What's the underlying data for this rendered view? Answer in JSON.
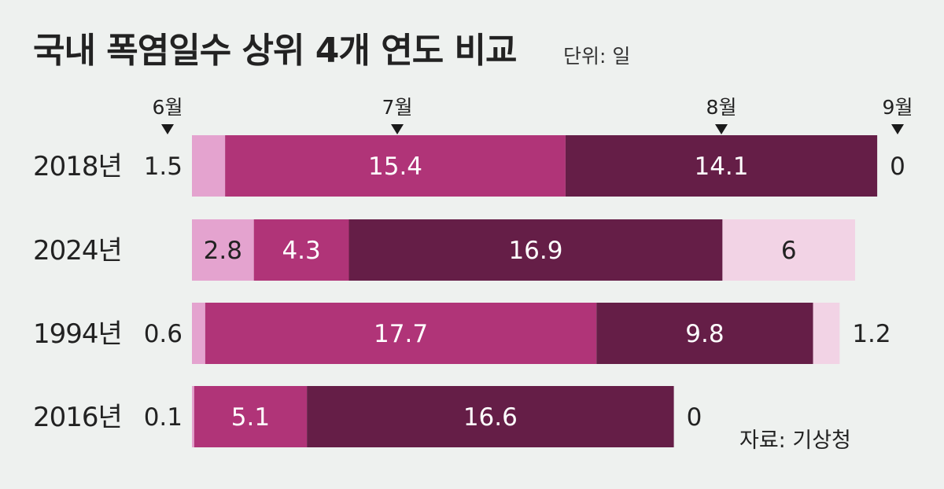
{
  "header": {
    "title": "국내 폭염일수 상위 4개 연도 비교",
    "unit": "단위: 일"
  },
  "footer": {
    "source": "자료: 기상청"
  },
  "chart_data": {
    "type": "bar",
    "orientation": "horizontal",
    "stacked": true,
    "title": "국내 폭염일수 상위 4개 연도 비교",
    "unit": "단위: 일",
    "month_markers": [
      "6월",
      "7월",
      "8월",
      "9월"
    ],
    "categories": [
      "2018년",
      "2024년",
      "1994년",
      "2016년"
    ],
    "series": [
      {
        "name": "6월",
        "color": "#e4a3cf",
        "values": [
          1.5,
          2.8,
          0.6,
          0.1
        ]
      },
      {
        "name": "7월",
        "color": "#b03478",
        "values": [
          15.4,
          4.3,
          17.7,
          5.1
        ]
      },
      {
        "name": "8월",
        "color": "#651e47",
        "values": [
          14.1,
          16.9,
          9.8,
          16.6
        ]
      },
      {
        "name": "9월",
        "color": "#f2d3e5",
        "values": [
          0,
          6,
          1.2,
          0
        ]
      }
    ],
    "grid": false,
    "legend": "none"
  }
}
